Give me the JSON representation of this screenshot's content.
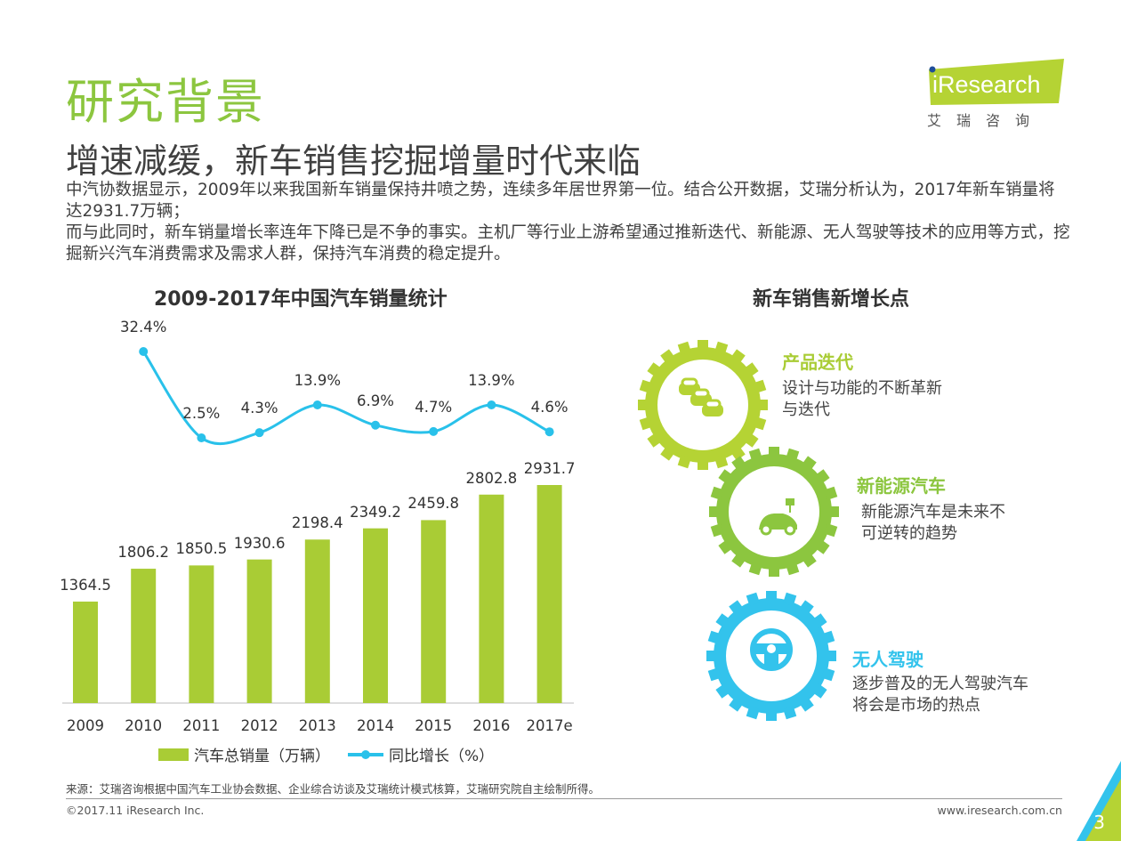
{
  "header": {
    "title": "研究背景",
    "subtitle": "增速减缓，新车销售挖掘增量时代来临",
    "logo_text": "iResearch",
    "logo_cn": "艾瑞咨询"
  },
  "intro": [
    "中汽协数据显示，2009年以来我国新车销量保持井喷之势，连续多年居世界第一位。结合公开数据，艾瑞分析认为，2017年新车销量将达2931.7万辆；",
    "而与此同时，新车销量增长率连年下降已是不争的事实。主机厂等行业上游希望通过推新迭代、新能源、无人驾驶等技术的应用等方式，挖掘新兴汽车消费需求及需求人群，保持汽车消费的稳定提升。"
  ],
  "chart_data": {
    "type": "bar+line",
    "title": "2009-2017年中国汽车销量统计",
    "categories": [
      "2009",
      "2010",
      "2011",
      "2012",
      "2013",
      "2014",
      "2015",
      "2016",
      "2017e"
    ],
    "series": [
      {
        "name": "汽车总销量（万辆）",
        "type": "bar",
        "color": "#a9cc35",
        "values": [
          1364.5,
          1806.2,
          1850.5,
          1930.6,
          2198.4,
          2349.2,
          2459.8,
          2802.8,
          2931.7
        ],
        "labels": [
          "1364.5",
          "1806.2",
          "1850.5",
          "1930.6",
          "2198.4",
          "2349.2",
          "2459.8",
          "2802.8",
          "2931.7"
        ]
      },
      {
        "name": "同比增长（%）",
        "type": "line",
        "color": "#29c1ea",
        "values": [
          32.4,
          2.5,
          4.3,
          13.9,
          6.9,
          4.7,
          13.9,
          4.6
        ],
        "x": [
          "2010",
          "2011",
          "2012",
          "2013",
          "2014",
          "2015",
          "2016",
          "2017e"
        ],
        "labels": [
          "32.4%",
          "2.5%",
          "4.3%",
          "13.9%",
          "6.9%",
          "4.7%",
          "13.9%",
          "4.6%"
        ]
      }
    ],
    "legend": "bottom"
  },
  "growth": {
    "title": "新车销售新增长点",
    "items": [
      {
        "heading": "产品迭代",
        "lines": [
          "设计与功能的不断革新",
          "与迭代"
        ],
        "color": "#b5d334",
        "icon": "cars-icon"
      },
      {
        "heading": "新能源汽车",
        "lines": [
          "新能源汽车是未来不",
          "可逆转的趋势"
        ],
        "color": "#8cc63f",
        "icon": "electric-car-icon"
      },
      {
        "heading": "无人驾驶",
        "lines": [
          "逐步普及的无人驾驶汽车",
          "将会是市场的热点"
        ],
        "color": "#33c3ec",
        "icon": "steering-wheel-icon"
      }
    ]
  },
  "footer": {
    "source": "来源：艾瑞咨询根据中国汽车工业协会数据、企业综合访谈及艾瑞统计模式核算，艾瑞研究院自主绘制所得。",
    "copyright": "©2017.11 iResearch Inc.",
    "website": "www.iresearch.com.cn",
    "page": "3"
  }
}
